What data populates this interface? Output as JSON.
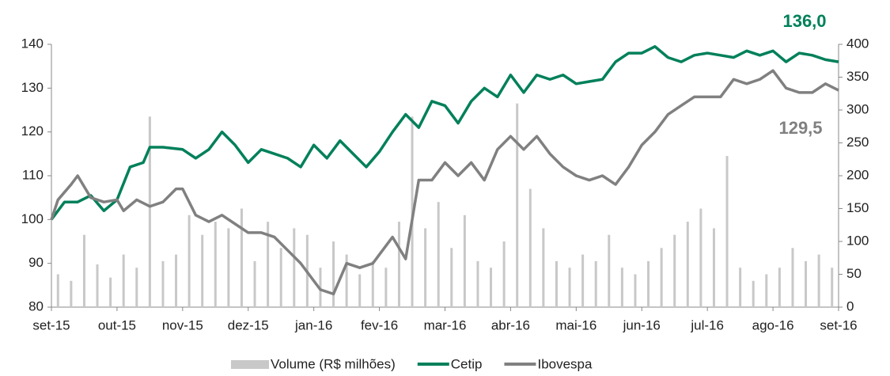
{
  "chart_data": {
    "type": "line",
    "xlim": [
      0,
      12
    ],
    "xticks": [
      {
        "value": 0,
        "label": "set-15"
      },
      {
        "value": 1,
        "label": "out-15"
      },
      {
        "value": 2,
        "label": "nov-15"
      },
      {
        "value": 3,
        "label": "dez-15"
      },
      {
        "value": 4,
        "label": "jan-16"
      },
      {
        "value": 5,
        "label": "fev-16"
      },
      {
        "value": 6,
        "label": "mar-16"
      },
      {
        "value": 7,
        "label": "abr-16"
      },
      {
        "value": 8,
        "label": "mai-16"
      },
      {
        "value": 9,
        "label": "jun-16"
      },
      {
        "value": 10,
        "label": "jul-16"
      },
      {
        "value": 11,
        "label": "ago-16"
      },
      {
        "value": 12,
        "label": "set-16"
      }
    ],
    "ylim": [
      80,
      140
    ],
    "yticks": [
      80,
      90,
      100,
      110,
      120,
      130,
      140
    ],
    "y2lim": [
      0,
      400
    ],
    "y2ticks": [
      0,
      50,
      100,
      150,
      200,
      250,
      300,
      350,
      400
    ],
    "series": [
      {
        "name": "Volume (R$ milhões)",
        "type": "bar",
        "axis": "y2",
        "color": "#c8c8c8",
        "x": [
          0.1,
          0.3,
          0.5,
          0.7,
          0.9,
          1.1,
          1.3,
          1.5,
          1.7,
          1.9,
          2.1,
          2.3,
          2.5,
          2.7,
          2.9,
          3.1,
          3.3,
          3.5,
          3.7,
          3.9,
          4.1,
          4.3,
          4.5,
          4.7,
          4.9,
          5.1,
          5.3,
          5.5,
          5.7,
          5.9,
          6.1,
          6.3,
          6.5,
          6.7,
          6.9,
          7.1,
          7.3,
          7.5,
          7.7,
          7.9,
          8.1,
          8.3,
          8.5,
          8.7,
          8.9,
          9.1,
          9.3,
          9.5,
          9.7,
          9.9,
          10.1,
          10.3,
          10.5,
          10.7,
          10.9,
          11.1,
          11.3,
          11.5,
          11.7,
          11.9
        ],
        "values": [
          50,
          40,
          110,
          65,
          45,
          80,
          60,
          290,
          70,
          80,
          140,
          110,
          130,
          120,
          150,
          70,
          130,
          90,
          120,
          110,
          60,
          100,
          80,
          50,
          70,
          60,
          130,
          290,
          120,
          160,
          90,
          140,
          70,
          60,
          100,
          310,
          180,
          120,
          70,
          60,
          80,
          70,
          110,
          60,
          50,
          70,
          90,
          110,
          130,
          150,
          120,
          230,
          60,
          40,
          50,
          60,
          90,
          70,
          80,
          60
        ]
      },
      {
        "name": "Cetip",
        "type": "line",
        "axis": "y",
        "color": "#00805a",
        "x": [
          0,
          0.2,
          0.4,
          0.6,
          0.8,
          1.0,
          1.2,
          1.4,
          1.5,
          1.7,
          2.0,
          2.2,
          2.4,
          2.6,
          2.8,
          3.0,
          3.2,
          3.4,
          3.6,
          3.8,
          4.0,
          4.2,
          4.4,
          4.6,
          4.8,
          5.0,
          5.2,
          5.4,
          5.6,
          5.8,
          6.0,
          6.2,
          6.4,
          6.6,
          6.8,
          7.0,
          7.2,
          7.4,
          7.6,
          7.8,
          8.0,
          8.2,
          8.4,
          8.6,
          8.8,
          9.0,
          9.2,
          9.4,
          9.6,
          9.8,
          10.0,
          10.2,
          10.4,
          10.6,
          10.8,
          11.0,
          11.2,
          11.4,
          11.6,
          11.8,
          12.0
        ],
        "values": [
          100,
          104,
          104,
          105.5,
          102,
          104.5,
          112,
          113,
          116.5,
          116.5,
          116,
          114,
          116,
          120,
          117,
          113,
          116,
          115,
          114,
          112,
          117,
          114,
          118,
          115,
          112,
          115.5,
          120,
          124,
          121,
          127,
          126,
          122,
          127,
          130,
          128,
          133,
          129,
          133,
          132,
          133,
          131,
          131.5,
          132,
          136,
          138,
          138,
          139.5,
          137,
          136,
          137.5,
          138,
          137.5,
          137,
          138.5,
          137.5,
          138.5,
          136,
          138,
          137.5,
          136.5,
          136
        ]
      },
      {
        "name": "Ibovespa",
        "type": "line",
        "axis": "y",
        "color": "#808080",
        "x": [
          0,
          0.1,
          0.3,
          0.4,
          0.6,
          0.8,
          1.0,
          1.1,
          1.3,
          1.5,
          1.7,
          1.9,
          2.0,
          2.2,
          2.4,
          2.6,
          2.8,
          3.0,
          3.2,
          3.4,
          3.6,
          3.8,
          4.0,
          4.1,
          4.3,
          4.5,
          4.7,
          4.9,
          5.0,
          5.2,
          5.4,
          5.6,
          5.8,
          6.0,
          6.2,
          6.4,
          6.6,
          6.8,
          7.0,
          7.2,
          7.4,
          7.6,
          7.8,
          8.0,
          8.2,
          8.4,
          8.6,
          8.8,
          9.0,
          9.2,
          9.4,
          9.6,
          9.8,
          10.0,
          10.2,
          10.4,
          10.6,
          10.8,
          11.0,
          11.2,
          11.4,
          11.6,
          11.8,
          12.0
        ],
        "values": [
          100,
          104.5,
          108,
          110,
          105,
          104,
          104.5,
          102,
          104.5,
          103,
          104,
          107,
          107,
          101,
          99.5,
          101,
          99,
          97,
          97,
          96,
          93,
          90,
          86,
          84,
          83,
          90,
          89,
          90,
          92,
          96,
          91,
          109,
          109,
          113,
          110,
          113,
          109,
          116,
          119,
          116,
          119,
          115,
          112,
          110,
          109,
          110,
          108,
          112,
          117,
          120,
          124,
          126,
          128,
          128,
          128,
          132,
          131,
          132,
          134,
          130,
          129,
          129,
          131,
          129.5
        ]
      }
    ],
    "annotations": [
      {
        "text": "136,0",
        "color": "#00805a"
      },
      {
        "text": "129,5",
        "color": "#808080"
      }
    ]
  }
}
